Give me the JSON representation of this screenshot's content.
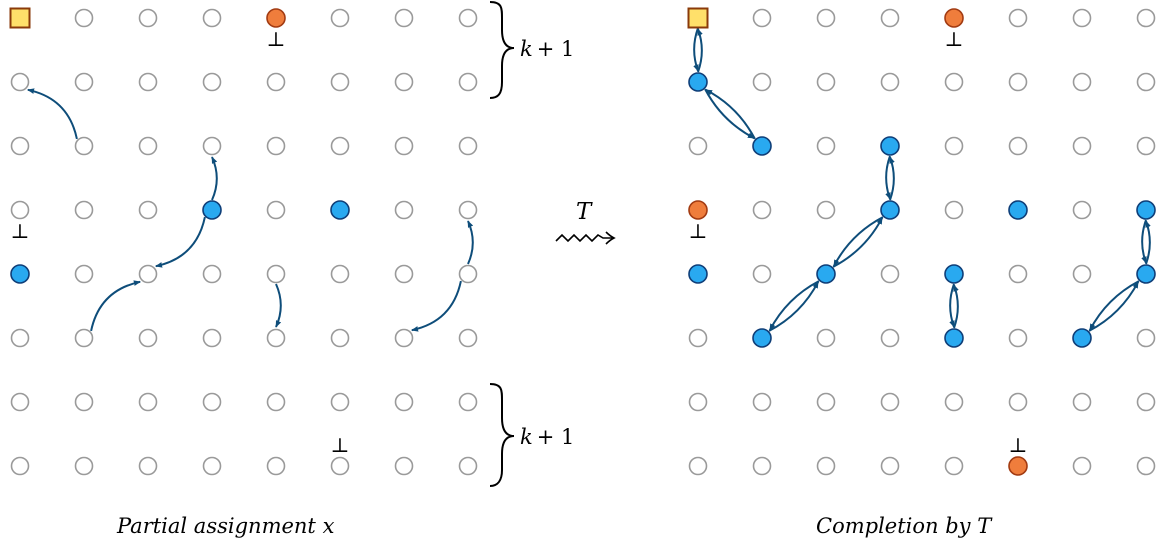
{
  "grid": {
    "rows": 8,
    "cols": 8
  },
  "colors": {
    "empty_stroke": "#9a9a9a",
    "blue_fill": "#29a9f0",
    "blue_stroke": "#0f3e78",
    "orange_fill": "#ef7d3c",
    "orange_stroke": "#a23b12",
    "yellow_fill": "#ffe06a",
    "yellow_stroke": "#8a3a0a",
    "arrow": "#0e4d7a"
  },
  "left": {
    "caption_prefix": "Partial assignment ",
    "caption_var": "x",
    "yellow": [
      [
        0,
        0
      ]
    ],
    "orange": [
      [
        0,
        4
      ]
    ],
    "blue": [
      [
        3,
        3
      ],
      [
        3,
        5
      ],
      [
        4,
        0
      ]
    ],
    "bottoms": [
      {
        "row": 0,
        "col": 4,
        "pos": "below"
      },
      {
        "row": 3,
        "col": 0,
        "pos": "below"
      },
      {
        "row": 7,
        "col": 5,
        "pos": "above"
      }
    ],
    "arrows": [
      {
        "from": [
          2,
          1
        ],
        "to": [
          1,
          0
        ],
        "bend": 0.25
      },
      {
        "from": [
          3,
          3
        ],
        "to": [
          2,
          3
        ],
        "bend": 0.15
      },
      {
        "from": [
          3,
          3
        ],
        "to": [
          4,
          2
        ],
        "bend": -0.25
      },
      {
        "from": [
          5,
          1
        ],
        "to": [
          4,
          2
        ],
        "bend": -0.25
      },
      {
        "from": [
          4,
          4
        ],
        "to": [
          5,
          4
        ],
        "bend": -0.15
      },
      {
        "from": [
          4,
          7
        ],
        "to": [
          3,
          7
        ],
        "bend": 0.15
      },
      {
        "from": [
          4,
          7
        ],
        "to": [
          5,
          6
        ],
        "bend": -0.25
      }
    ],
    "braces": [
      {
        "rows": [
          0,
          1
        ],
        "label": "k + 1"
      },
      {
        "rows": [
          6,
          7
        ],
        "label": "k + 1"
      }
    ]
  },
  "right": {
    "caption_prefix": "Completion by ",
    "caption_var": "T",
    "yellow": [
      [
        0,
        0
      ]
    ],
    "orange": [
      [
        0,
        4
      ],
      [
        3,
        0
      ],
      [
        7,
        5
      ]
    ],
    "blue": [
      [
        1,
        0
      ],
      [
        2,
        1
      ],
      [
        2,
        3
      ],
      [
        3,
        3
      ],
      [
        3,
        5
      ],
      [
        3,
        7
      ],
      [
        4,
        0
      ],
      [
        4,
        2
      ],
      [
        4,
        4
      ],
      [
        4,
        7
      ],
      [
        5,
        1
      ],
      [
        5,
        4
      ],
      [
        5,
        6
      ]
    ],
    "bottoms": [
      {
        "row": 0,
        "col": 4,
        "pos": "below"
      },
      {
        "row": 3,
        "col": 0,
        "pos": "below"
      },
      {
        "row": 7,
        "col": 5,
        "pos": "above"
      }
    ],
    "arrow_pairs": [
      [
        [
          0,
          0
        ],
        [
          1,
          0
        ]
      ],
      [
        [
          1,
          0
        ],
        [
          2,
          1
        ]
      ],
      [
        [
          2,
          3
        ],
        [
          3,
          3
        ]
      ],
      [
        [
          3,
          3
        ],
        [
          4,
          2
        ]
      ],
      [
        [
          4,
          2
        ],
        [
          5,
          1
        ]
      ],
      [
        [
          4,
          4
        ],
        [
          5,
          4
        ]
      ],
      [
        [
          3,
          7
        ],
        [
          4,
          7
        ]
      ],
      [
        [
          4,
          7
        ],
        [
          5,
          6
        ]
      ]
    ]
  },
  "transition": {
    "label": "T"
  },
  "bottom_symbol": "⊥"
}
